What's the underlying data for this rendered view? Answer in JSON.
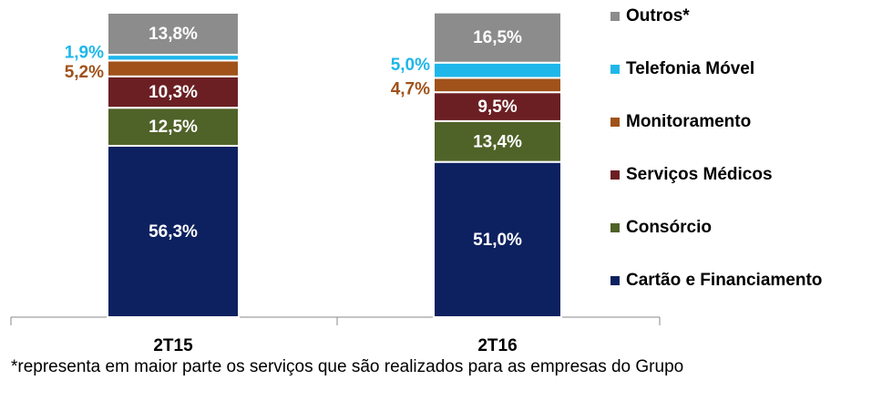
{
  "chart_data": {
    "type": "stacked_bar",
    "categories": [
      "2T15",
      "2T16"
    ],
    "ylim": [
      0,
      100
    ],
    "series": [
      {
        "name": "Cartão e Financiamento",
        "color": "#0d2160",
        "values": [
          56.3,
          51.0
        ],
        "value_labels": [
          "56,3%",
          "51,0%"
        ]
      },
      {
        "name": "Consórcio",
        "color": "#4f6228",
        "values": [
          12.5,
          13.4
        ],
        "value_labels": [
          "12,5%",
          "13,4%"
        ]
      },
      {
        "name": "Serviços Médicos",
        "color": "#6b1f23",
        "values": [
          10.3,
          9.5
        ],
        "value_labels": [
          "10,3%",
          "9,5%"
        ]
      },
      {
        "name": "Monitoramento",
        "color": "#a0521a",
        "values": [
          5.2,
          4.7
        ],
        "value_labels": [
          "5,2%",
          "4,7%"
        ]
      },
      {
        "name": "Telefonia Móvel",
        "color": "#1fb7ea",
        "values": [
          1.9,
          5.0
        ],
        "value_labels": [
          "1,9%",
          "5,0%"
        ]
      },
      {
        "name": "Outros*",
        "color": "#8c8c8c",
        "values": [
          13.8,
          16.5
        ],
        "value_labels": [
          "13,8%",
          "16,5%"
        ]
      }
    ],
    "footnote": "*representa em maior parte os serviços que são realizados para as empresas do Grupo"
  }
}
